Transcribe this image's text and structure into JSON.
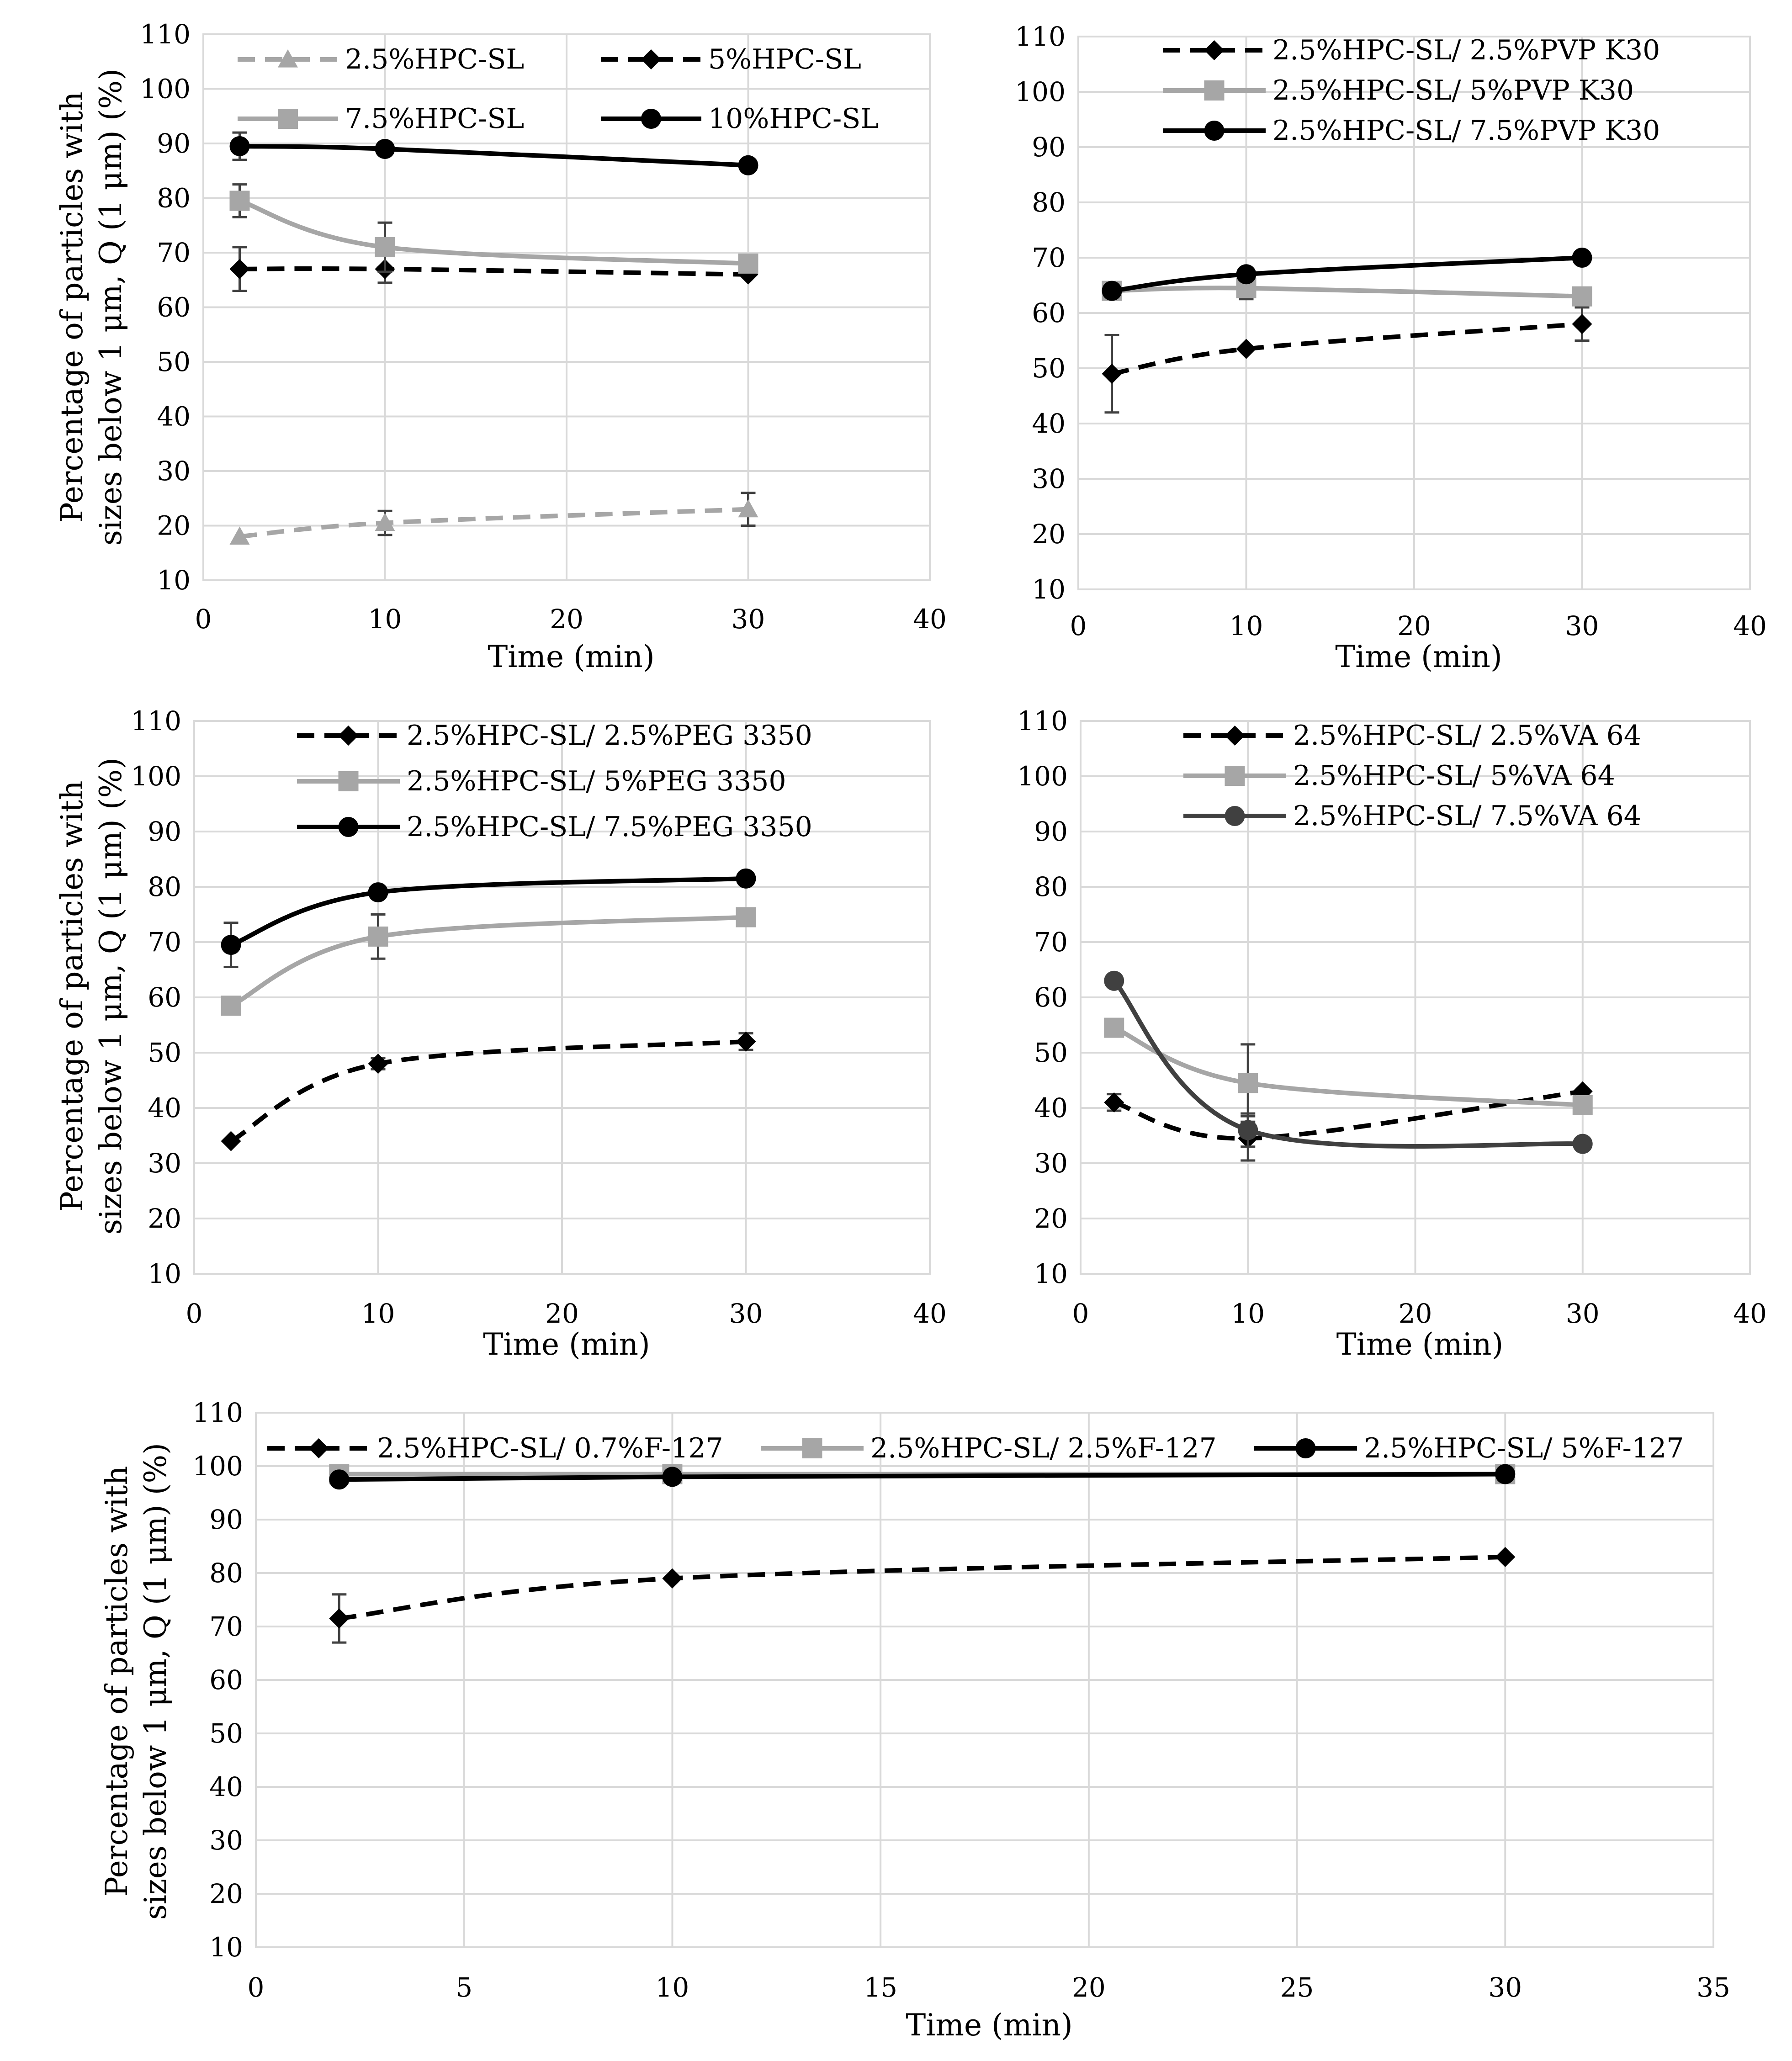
{
  "chart_data": [
    {
      "type": "line",
      "panel": "top-left",
      "xlabel": "Time (min)",
      "ylabel_line1": "Percentage of particles with",
      "ylabel_line2": "sizes below 1 μm, Q (1 μm) (%)",
      "xlim": [
        0,
        40
      ],
      "xticks": [
        0,
        10,
        20,
        30,
        40
      ],
      "ylim": [
        10,
        110
      ],
      "yticks": [
        10,
        20,
        30,
        40,
        50,
        60,
        70,
        80,
        90,
        100,
        110
      ],
      "grid": true,
      "legend_columns": 2,
      "series": [
        {
          "name": "2.5%HPC-SL",
          "x": [
            2,
            10,
            30
          ],
          "values": [
            18,
            20.5,
            23
          ],
          "err": [
            0,
            2.2,
            3
          ],
          "color": "#a6a6a6",
          "dash": true,
          "marker": "triangle"
        },
        {
          "name": "5%HPC-SL",
          "x": [
            2,
            10,
            30
          ],
          "values": [
            67,
            67,
            66
          ],
          "err": [
            4,
            2.5,
            0
          ],
          "color": "#000000",
          "dash": true,
          "marker": "diamond"
        },
        {
          "name": "7.5%HPC-SL",
          "x": [
            2,
            10,
            30
          ],
          "values": [
            79.5,
            71,
            68
          ],
          "err": [
            3,
            4.5,
            0
          ],
          "color": "#a6a6a6",
          "dash": false,
          "marker": "square"
        },
        {
          "name": "10%HPC-SL",
          "x": [
            2,
            10,
            30
          ],
          "values": [
            89.5,
            89,
            86
          ],
          "err": [
            2.5,
            0,
            0
          ],
          "color": "#000000",
          "dash": false,
          "marker": "circle"
        }
      ]
    },
    {
      "type": "line",
      "panel": "top-right",
      "xlabel": "Time (min)",
      "xlim": [
        0,
        40
      ],
      "xticks": [
        0,
        10,
        20,
        30,
        40
      ],
      "ylim": [
        10,
        110
      ],
      "yticks": [
        10,
        20,
        30,
        40,
        50,
        60,
        70,
        80,
        90,
        100,
        110
      ],
      "grid": true,
      "legend_columns": 1,
      "series": [
        {
          "name": "2.5%HPC-SL/ 2.5%PVP K30",
          "x": [
            2,
            10,
            30
          ],
          "values": [
            49,
            53.5,
            58
          ],
          "err": [
            7,
            0,
            3
          ],
          "color": "#000000",
          "dash": true,
          "marker": "diamond"
        },
        {
          "name": "2.5%HPC-SL/ 5%PVP K30",
          "x": [
            2,
            10,
            30
          ],
          "values": [
            64,
            64.5,
            63
          ],
          "err": [
            0,
            2,
            0
          ],
          "color": "#a6a6a6",
          "dash": false,
          "marker": "square"
        },
        {
          "name": "2.5%HPC-SL/ 7.5%PVP K30",
          "x": [
            2,
            10,
            30
          ],
          "values": [
            64,
            67,
            70
          ],
          "err": [
            0,
            0,
            0
          ],
          "color": "#000000",
          "dash": false,
          "marker": "circle"
        }
      ]
    },
    {
      "type": "line",
      "panel": "middle-left",
      "xlabel": "Time (min)",
      "ylabel_line1": "Percentage of particles with",
      "ylabel_line2": "sizes below 1 μm, Q (1 μm) (%)",
      "xlim": [
        0,
        40
      ],
      "xticks": [
        0,
        10,
        20,
        30,
        40
      ],
      "ylim": [
        10,
        110
      ],
      "yticks": [
        10,
        20,
        30,
        40,
        50,
        60,
        70,
        80,
        90,
        100,
        110
      ],
      "grid": true,
      "legend_columns": 1,
      "series": [
        {
          "name": "2.5%HPC-SL/ 2.5%PEG 3350",
          "x": [
            2,
            10,
            30
          ],
          "values": [
            34,
            48,
            52
          ],
          "err": [
            0,
            1,
            1.5
          ],
          "color": "#000000",
          "dash": true,
          "marker": "diamond"
        },
        {
          "name": "2.5%HPC-SL/ 5%PEG 3350",
          "x": [
            2,
            10,
            30
          ],
          "values": [
            58.5,
            71,
            74.5
          ],
          "err": [
            0,
            4,
            0
          ],
          "color": "#a6a6a6",
          "dash": false,
          "marker": "square"
        },
        {
          "name": "2.5%HPC-SL/ 7.5%PEG 3350",
          "x": [
            2,
            10,
            30
          ],
          "values": [
            69.5,
            79,
            81.5
          ],
          "err": [
            4,
            0,
            0
          ],
          "color": "#000000",
          "dash": false,
          "marker": "circle"
        }
      ]
    },
    {
      "type": "line",
      "panel": "middle-right",
      "xlabel": "Time (min)",
      "xlim": [
        0,
        40
      ],
      "xticks": [
        0,
        10,
        20,
        30,
        40
      ],
      "ylim": [
        10,
        110
      ],
      "yticks": [
        10,
        20,
        30,
        40,
        50,
        60,
        70,
        80,
        90,
        100,
        110
      ],
      "grid": true,
      "legend_columns": 1,
      "series": [
        {
          "name": "2.5%HPC-SL/ 2.5%VA 64",
          "x": [
            2,
            10,
            30
          ],
          "values": [
            41,
            34.5,
            43
          ],
          "err": [
            1.5,
            4,
            0
          ],
          "color": "#000000",
          "dash": true,
          "marker": "diamond"
        },
        {
          "name": "2.5%HPC-SL/ 5%VA 64",
          "x": [
            2,
            10,
            30
          ],
          "values": [
            54.5,
            44.5,
            40.5
          ],
          "err": [
            0,
            7,
            0
          ],
          "color": "#a6a6a6",
          "dash": false,
          "marker": "square"
        },
        {
          "name": "2.5%HPC-SL/ 7.5%VA 64",
          "x": [
            2,
            10,
            30
          ],
          "values": [
            63,
            36,
            33.5
          ],
          "err": [
            0,
            3,
            0
          ],
          "color": "#404040",
          "dash": false,
          "marker": "circle"
        }
      ]
    },
    {
      "type": "line",
      "panel": "bottom",
      "xlabel": "Time (min)",
      "ylabel_line1": "Percentage of particles with",
      "ylabel_line2": "sizes below 1 μm, Q (1 μm) (%)",
      "xlim": [
        0,
        35
      ],
      "xticks": [
        0,
        5,
        10,
        15,
        20,
        25,
        30,
        35
      ],
      "ylim": [
        10,
        110
      ],
      "yticks": [
        10,
        20,
        30,
        40,
        50,
        60,
        70,
        80,
        90,
        100,
        110
      ],
      "grid": true,
      "legend_columns": 3,
      "series": [
        {
          "name": "2.5%HPC-SL/ 0.7%F-127",
          "x": [
            2,
            10,
            30
          ],
          "values": [
            71.5,
            79,
            83
          ],
          "err": [
            4.5,
            0,
            0
          ],
          "color": "#000000",
          "dash": true,
          "marker": "diamond"
        },
        {
          "name": "2.5%HPC-SL/ 2.5%F-127",
          "x": [
            2,
            10,
            30
          ],
          "values": [
            98.5,
            98.5,
            98.5
          ],
          "err": [
            0,
            0,
            0
          ],
          "color": "#a6a6a6",
          "dash": false,
          "marker": "square"
        },
        {
          "name": "2.5%HPC-SL/ 5%F-127",
          "x": [
            2,
            10,
            30
          ],
          "values": [
            97.5,
            98,
            98.5
          ],
          "err": [
            0,
            0,
            0
          ],
          "color": "#000000",
          "dash": false,
          "marker": "circle"
        }
      ]
    }
  ]
}
